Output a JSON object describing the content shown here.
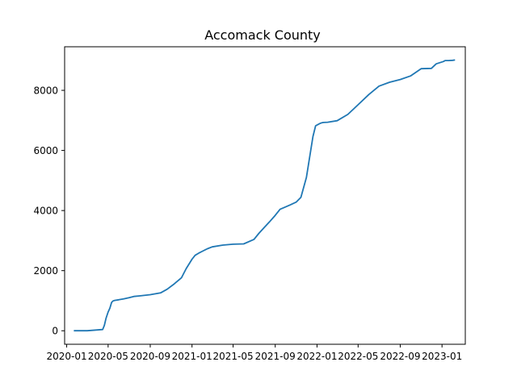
{
  "chart_data": {
    "type": "line",
    "title": "Accomack County",
    "xlabel": "",
    "ylabel": "",
    "grid": false,
    "legend": "none",
    "line_color": "#1f77b4",
    "xlim": [
      "2019-12-26",
      "2023-03-10"
    ],
    "ylim": [
      -450,
      9450
    ],
    "x_ticks": [
      "2020-01",
      "2020-05",
      "2020-09",
      "2021-01",
      "2021-05",
      "2021-09",
      "2022-01",
      "2022-05",
      "2022-09",
      "2023-01"
    ],
    "y_ticks": [
      0,
      2000,
      4000,
      6000,
      8000
    ],
    "series": [
      {
        "x": [
          "2020-01-22",
          "2020-03-01",
          "2020-04-15",
          "2020-04-20",
          "2020-04-25",
          "2020-05-01",
          "2020-05-06",
          "2020-05-11",
          "2020-05-15",
          "2020-05-20",
          "2020-06-01",
          "2020-06-15",
          "2020-07-01",
          "2020-07-15",
          "2020-08-01",
          "2020-09-01",
          "2020-10-01",
          "2020-10-20",
          "2020-11-10",
          "2020-12-01",
          "2020-12-15",
          "2020-12-25",
          "2021-01-01",
          "2021-01-10",
          "2021-01-20",
          "2021-02-01",
          "2021-02-15",
          "2021-03-01",
          "2021-04-01",
          "2021-05-01",
          "2021-06-01",
          "2021-07-01",
          "2021-07-15",
          "2021-08-01",
          "2021-08-15",
          "2021-09-01",
          "2021-09-15",
          "2021-10-01",
          "2021-10-15",
          "2021-11-01",
          "2021-11-15",
          "2021-12-01",
          "2021-12-20",
          "2021-12-28",
          "2022-01-05",
          "2022-01-10",
          "2022-01-15",
          "2022-01-20",
          "2022-02-01",
          "2022-03-01",
          "2022-04-01",
          "2022-05-01",
          "2022-06-01",
          "2022-07-01",
          "2022-08-01",
          "2022-09-01",
          "2022-10-01",
          "2022-11-01",
          "2022-12-01",
          "2022-12-15",
          "2022-12-25",
          "2023-01-05",
          "2023-01-10",
          "2023-01-20",
          "2023-02-01",
          "2023-02-08"
        ],
        "y": [
          0,
          0,
          40,
          180,
          420,
          620,
          750,
          940,
          990,
          1010,
          1030,
          1060,
          1100,
          1140,
          1160,
          1200,
          1260,
          1380,
          1560,
          1760,
          2070,
          2250,
          2380,
          2510,
          2580,
          2650,
          2730,
          2790,
          2850,
          2880,
          2890,
          3040,
          3240,
          3450,
          3620,
          3840,
          4040,
          4120,
          4190,
          4280,
          4440,
          5100,
          6460,
          6820,
          6870,
          6900,
          6920,
          6930,
          6940,
          6990,
          7200,
          7520,
          7860,
          8140,
          8270,
          8360,
          8480,
          8720,
          8730,
          8880,
          8920,
          8960,
          8990,
          8990,
          9000,
          9010
        ]
      }
    ]
  }
}
